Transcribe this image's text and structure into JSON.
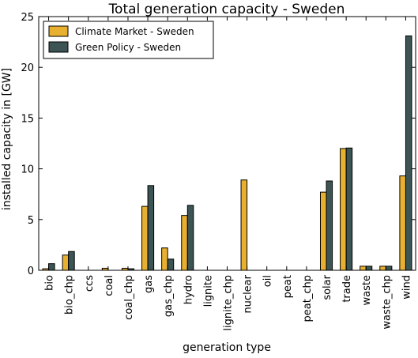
{
  "chart_data": {
    "type": "bar",
    "title": "Total generation capacity - Sweden",
    "xlabel": "generation type",
    "ylabel": "installed capacity in [GW]",
    "ylim": [
      0,
      25
    ],
    "yticks": [
      0,
      5,
      10,
      15,
      20,
      25
    ],
    "grid": false,
    "legend_position": "top-left",
    "categories": [
      "bio",
      "bio_chp",
      "ccs",
      "coal",
      "coal_chp",
      "gas",
      "gas_chp",
      "hydro",
      "lignite",
      "lignite_chp",
      "nuclear",
      "oil",
      "peat",
      "peat_chp",
      "solar",
      "trade",
      "waste",
      "waste_chp",
      "wind"
    ],
    "series": [
      {
        "name": "Climate Market - Sweden",
        "color": "#e8b030",
        "values": [
          0.15,
          1.5,
          0,
          0.2,
          0.2,
          6.3,
          2.2,
          5.4,
          0,
          0,
          8.9,
          0,
          0,
          0,
          7.7,
          12.0,
          0.4,
          0.4,
          9.3
        ]
      },
      {
        "name": "Green Policy - Sweden",
        "color": "#3c5454",
        "values": [
          0.65,
          1.85,
          0,
          0,
          0.15,
          8.35,
          1.1,
          6.4,
          0,
          0,
          0,
          0,
          0,
          0,
          8.8,
          12.05,
          0.4,
          0.4,
          23.1
        ]
      }
    ]
  }
}
